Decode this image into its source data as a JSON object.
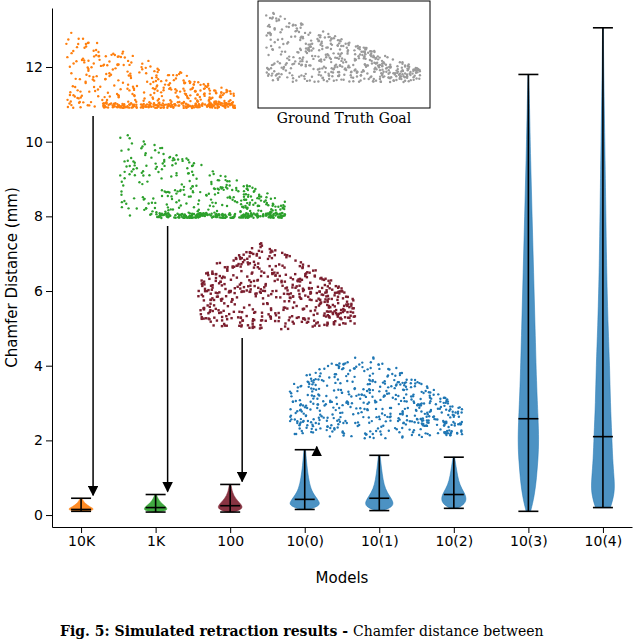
{
  "chart_data": {
    "type": "violin",
    "x_label": "Models",
    "y_label": "Chamfer Distance (mm)",
    "categories": [
      "10K",
      "1K",
      "100",
      "10(0)",
      "10(1)",
      "10(2)",
      "10(3)",
      "10(4)"
    ],
    "colors": [
      "#ff7f0e",
      "#2ca02c",
      "#7b1e2e",
      "#1f77b4",
      "#1f77b4",
      "#1f77b4",
      "#1f77b4",
      "#1f77b4"
    ],
    "ylim": [
      -0.32,
      13.58
    ],
    "yticks": [
      0,
      2,
      4,
      6,
      8,
      10,
      12
    ],
    "violins": [
      {
        "min": 0.1,
        "median": 0.15,
        "max": 0.45,
        "density_y": [
          0.1,
          0.13,
          0.17,
          0.22,
          0.3,
          0.38,
          0.45
        ],
        "density_width": [
          0.03,
          0.16,
          0.17,
          0.12,
          0.06,
          0.03,
          0.01
        ]
      },
      {
        "min": 0.08,
        "median": 0.2,
        "max": 0.55,
        "density_y": [
          0.08,
          0.12,
          0.17,
          0.25,
          0.35,
          0.45,
          0.55
        ],
        "density_width": [
          0.03,
          0.14,
          0.16,
          0.12,
          0.06,
          0.03,
          0.01
        ]
      },
      {
        "min": 0.08,
        "median": 0.25,
        "max": 0.82,
        "density_y": [
          0.08,
          0.14,
          0.22,
          0.32,
          0.45,
          0.6,
          0.82
        ],
        "density_width": [
          0.04,
          0.14,
          0.17,
          0.13,
          0.07,
          0.03,
          0.01
        ]
      },
      {
        "min": 0.15,
        "median": 0.42,
        "max": 1.75,
        "density_y": [
          0.15,
          0.25,
          0.35,
          0.5,
          0.7,
          1.0,
          1.3,
          1.75
        ],
        "density_width": [
          0.06,
          0.2,
          0.2,
          0.14,
          0.08,
          0.05,
          0.03,
          0.01
        ]
      },
      {
        "min": 0.12,
        "median": 0.45,
        "max": 1.6,
        "density_y": [
          0.12,
          0.22,
          0.35,
          0.5,
          0.7,
          0.95,
          1.25,
          1.6
        ],
        "density_width": [
          0.05,
          0.18,
          0.19,
          0.14,
          0.08,
          0.05,
          0.03,
          0.01
        ]
      },
      {
        "min": 0.18,
        "median": 0.55,
        "max": 1.55,
        "density_y": [
          0.18,
          0.3,
          0.45,
          0.6,
          0.8,
          1.05,
          1.3,
          1.55
        ],
        "density_width": [
          0.05,
          0.15,
          0.17,
          0.14,
          0.08,
          0.05,
          0.03,
          0.01
        ]
      },
      {
        "min": 0.1,
        "median": 2.58,
        "max": 11.8,
        "density_y": [
          0.1,
          0.5,
          1.0,
          1.5,
          2.0,
          2.6,
          3.5,
          5.0,
          6.5,
          8.0,
          9.5,
          11.0,
          11.8
        ],
        "density_width": [
          0.03,
          0.08,
          0.11,
          0.13,
          0.14,
          0.13,
          0.11,
          0.09,
          0.07,
          0.05,
          0.03,
          0.015,
          0.005
        ]
      },
      {
        "min": 0.2,
        "median": 2.1,
        "max": 13.05,
        "density_y": [
          0.2,
          0.6,
          1.0,
          1.5,
          2.1,
          3.0,
          4.0,
          5.0,
          6.5,
          8.0,
          10.0,
          12.0,
          13.05
        ],
        "density_width": [
          0.1,
          0.16,
          0.15,
          0.13,
          0.12,
          0.1,
          0.09,
          0.07,
          0.05,
          0.04,
          0.025,
          0.01,
          0.005
        ]
      }
    ],
    "annotations": [
      "Ground Truth Goal"
    ],
    "caption": [
      "Fig. 5: Simulated retraction results -",
      "Chamfer distance between"
    ]
  }
}
